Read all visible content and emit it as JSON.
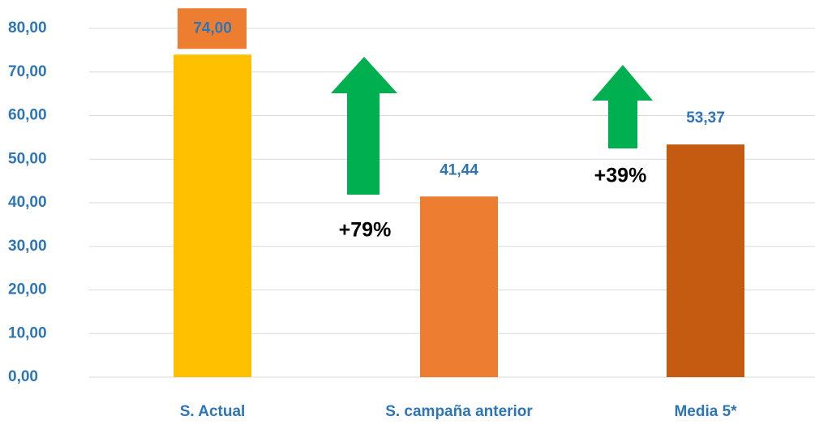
{
  "chart_data": {
    "type": "bar",
    "categories": [
      "S. Actual",
      "S. campaña anterior",
      "Media 5*"
    ],
    "values": [
      74,
      41.44,
      53.37
    ],
    "value_labels": [
      "74,00",
      "41,44",
      "53,37"
    ],
    "colors": [
      "#FFC000",
      "#ED7D31",
      "#C55A11"
    ],
    "ylim": [
      0,
      80
    ],
    "yticks": [
      {
        "value": 0,
        "label": "0,00"
      },
      {
        "value": 10,
        "label": "10,00"
      },
      {
        "value": 20,
        "label": "20,00"
      },
      {
        "value": 30,
        "label": "30,00"
      },
      {
        "value": 40,
        "label": "40,00"
      },
      {
        "value": 50,
        "label": "50,00"
      },
      {
        "value": 60,
        "label": "60,00"
      },
      {
        "value": 70,
        "label": "70,00"
      },
      {
        "value": 80,
        "label": "80,00"
      }
    ],
    "grid": true,
    "annotations": [
      "+79%",
      "+39%"
    ]
  }
}
